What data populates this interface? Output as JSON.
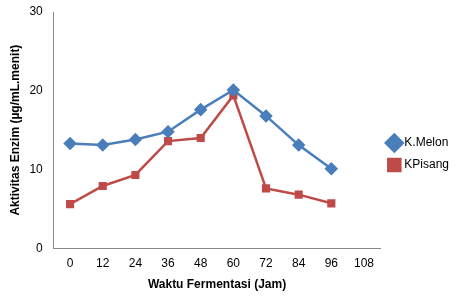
{
  "chart_data": {
    "type": "line",
    "x_label": "Waktu Fermentasi (Jam)",
    "y_label": "Aktivitas Enzim (µg/mL.menit)",
    "categories": [
      0,
      12,
      24,
      36,
      48,
      60,
      72,
      84,
      96,
      108
    ],
    "series": [
      {
        "name": "K.Melon",
        "color": "#4a7ebb",
        "marker": "diamond",
        "values": [
          13.3,
          13.1,
          13.8,
          14.8,
          17.6,
          20.1,
          16.8,
          13.1,
          10.1,
          null
        ]
      },
      {
        "name": "KPisang",
        "color": "#be4b48",
        "marker": "square",
        "values": [
          5.6,
          7.9,
          9.3,
          13.6,
          14.0,
          19.4,
          7.6,
          6.8,
          5.7,
          null
        ]
      }
    ],
    "ylim": [
      0,
      30
    ],
    "yticks": [
      0,
      10,
      20,
      30
    ],
    "grid": false,
    "legend": "right"
  }
}
